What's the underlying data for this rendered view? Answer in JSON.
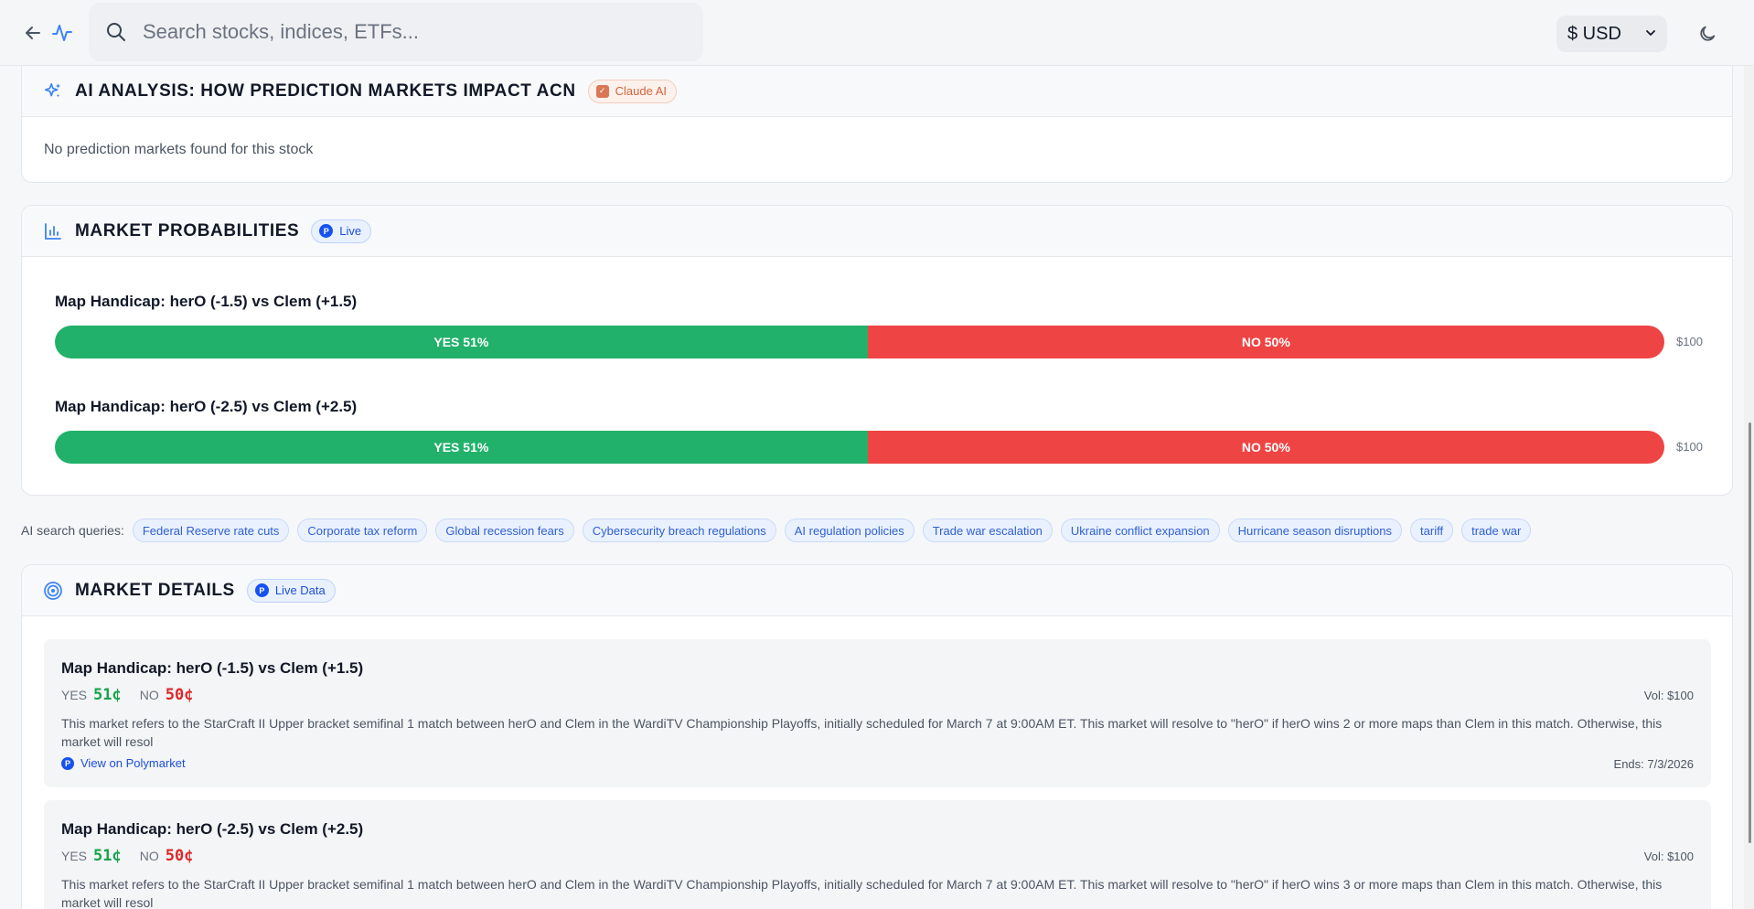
{
  "topbar": {
    "search_placeholder": "Search stocks, indices, ETFs...",
    "currency": "$ USD",
    "icons": {
      "back": "arrow-left-icon",
      "pulse": "activity-icon",
      "search": "search-icon",
      "theme": "moon-icon",
      "chevron": "chevron-down-icon"
    },
    "accent": "#3b82f6"
  },
  "ai_analysis": {
    "title": "AI ANALYSIS: HOW PREDICTION MARKETS IMPACT ACN",
    "badge": "Claude AI",
    "badge_mark": "✓",
    "empty_message": "No prediction markets found for this stock",
    "icon": "sparkles-icon"
  },
  "probabilities": {
    "title": "MARKET PROBABILITIES",
    "badge": "Live",
    "badge_mark": "P",
    "icon": "bar-chart-icon",
    "colors": {
      "yes": "#22b16b",
      "no": "#ef4444"
    },
    "markets": [
      {
        "title": "Map Handicap: herO (-1.5) vs Clem (+1.5)",
        "yes_label": "YES 51%",
        "no_label": "NO 50%",
        "yes_pct": 51,
        "no_pct": 50,
        "volume": "$100"
      },
      {
        "title": "Map Handicap: herO (-2.5) vs Clem (+2.5)",
        "yes_label": "YES 51%",
        "no_label": "NO 50%",
        "yes_pct": 51,
        "no_pct": 50,
        "volume": "$100"
      }
    ]
  },
  "queries": {
    "label": "AI search queries:",
    "items": [
      "Federal Reserve rate cuts",
      "Corporate tax reform",
      "Global recession fears",
      "Cybersecurity breach regulations",
      "AI regulation policies",
      "Trade war escalation",
      "Ukraine conflict expansion",
      "Hurricane season disruptions",
      "tariff",
      "trade war"
    ]
  },
  "details": {
    "title": "MARKET DETAILS",
    "badge": "Live Data",
    "badge_mark": "P",
    "icon": "target-icon",
    "yes_label": "YES",
    "no_label": "NO",
    "link_label": "View on Polymarket",
    "link_mark": "P",
    "markets": [
      {
        "title": "Map Handicap: herO (-1.5) vs Clem (+1.5)",
        "yes_price": "51¢",
        "no_price": "50¢",
        "volume": "Vol: $100",
        "description": "This market refers to the StarCraft II Upper bracket semifinal 1 match between herO and Clem in the WardiTV Championship Playoffs, initially scheduled for March 7 at 9:00AM ET. This market will resolve to \"herO\" if herO wins 2 or more maps than Clem in this match. Otherwise, this market will resol",
        "ends": "Ends: 7/3/2026"
      },
      {
        "title": "Map Handicap: herO (-2.5) vs Clem (+2.5)",
        "yes_price": "51¢",
        "no_price": "50¢",
        "volume": "Vol: $100",
        "description": "This market refers to the StarCraft II Upper bracket semifinal 1 match between herO and Clem in the WardiTV Championship Playoffs, initially scheduled for March 7 at 9:00AM ET. This market will resolve to \"herO\" if herO wins 3 or more maps than Clem in this match. Otherwise, this market will resol"
      }
    ]
  }
}
